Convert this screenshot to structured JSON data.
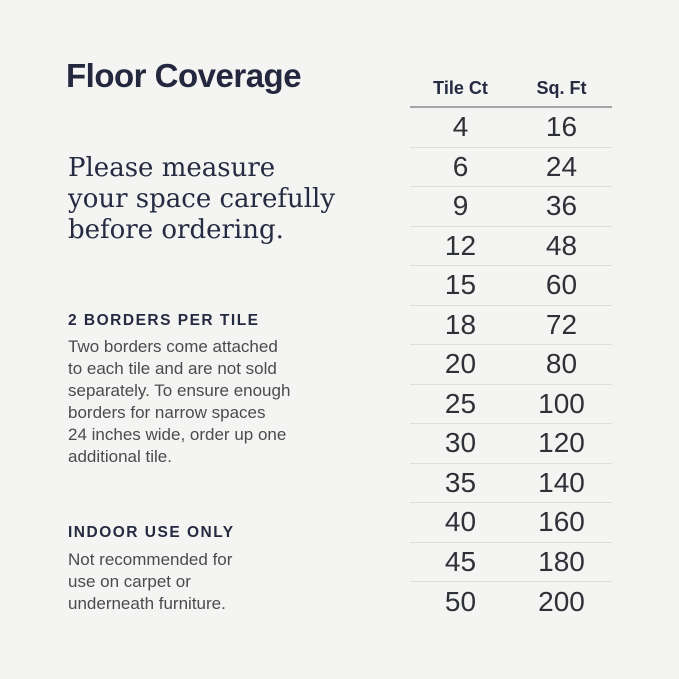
{
  "canvas": {
    "background_color": "#f4f4f2",
    "navy_color": "#252a40",
    "body_text_color": "#4a4b4e"
  },
  "left_column": {
    "title": "Floor Coverage",
    "lead_text": "Please measure\nyour space carefully\nbefore ordering.",
    "sections": [
      {
        "heading": "2 BORDERS PER TILE",
        "body": "Two borders come attached\nto each tile and are not sold\nseparately. To ensure enough\nborders for narrow spaces\n24 inches wide, order up one\nadditional tile."
      },
      {
        "heading": "INDOOR USE ONLY",
        "body": "Not recommended for\nuse on carpet or\nunderneath furniture."
      }
    ]
  },
  "table": {
    "columns": [
      "Tile Ct",
      "Sq. Ft"
    ],
    "rows": [
      [
        "4",
        "16"
      ],
      [
        "6",
        "24"
      ],
      [
        "9",
        "36"
      ],
      [
        "12",
        "48"
      ],
      [
        "15",
        "60"
      ],
      [
        "18",
        "72"
      ],
      [
        "20",
        "80"
      ],
      [
        "25",
        "100"
      ],
      [
        "30",
        "120"
      ],
      [
        "35",
        "140"
      ],
      [
        "40",
        "160"
      ],
      [
        "45",
        "180"
      ],
      [
        "50",
        "200"
      ]
    ]
  }
}
